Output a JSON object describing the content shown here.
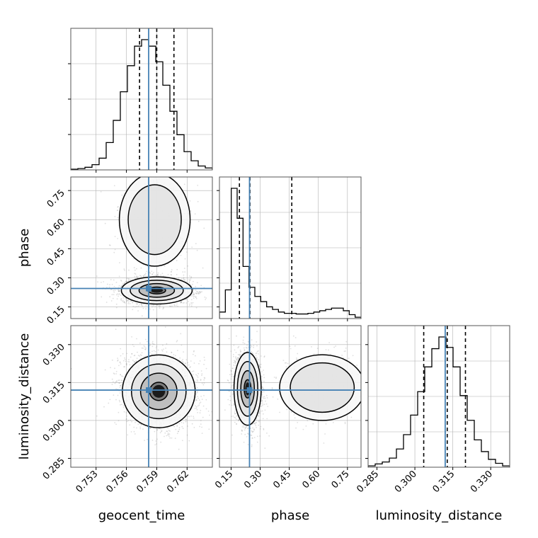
{
  "chart_data": {
    "type": "corner",
    "parameters": [
      "geocent_time",
      "phase",
      "luminosity_distance"
    ],
    "labels": {
      "geocent_time": "geocent_time",
      "phase": "phase",
      "luminosity_distance": "luminosity_distance"
    },
    "ranges": {
      "geocent_time": [
        0.7505,
        0.7645
      ],
      "phase": [
        0.09,
        0.82
      ],
      "luminosity_distance": [
        0.2815,
        0.3375
      ]
    },
    "ticks": {
      "geocent_time": [
        "0.753",
        "0.756",
        "0.759",
        "0.762"
      ],
      "phase": [
        "0.15",
        "0.30",
        "0.45",
        "0.60",
        "0.75"
      ],
      "luminosity_distance": [
        "0.285",
        "0.300",
        "0.315",
        "0.330"
      ]
    },
    "injection": {
      "geocent_time": 0.7582,
      "phase": 0.245,
      "luminosity_distance": 0.312
    },
    "quantiles": {
      "geocent_time": [
        0.7573,
        0.759,
        0.7607
      ],
      "phase": [
        0.193,
        0.247,
        0.463
      ],
      "luminosity_distance": [
        0.3035,
        0.3128,
        0.32
      ]
    },
    "histograms": {
      "geocent_time": [
        0.005,
        0.01,
        0.02,
        0.04,
        0.09,
        0.21,
        0.38,
        0.6,
        0.8,
        0.95,
        1.0,
        0.95,
        0.83,
        0.65,
        0.45,
        0.27,
        0.14,
        0.07,
        0.03,
        0.015
      ],
      "phase": [
        0.05,
        0.22,
        1.0,
        0.77,
        0.4,
        0.24,
        0.17,
        0.13,
        0.09,
        0.07,
        0.05,
        0.04,
        0.04,
        0.035,
        0.035,
        0.04,
        0.05,
        0.06,
        0.07,
        0.08,
        0.08,
        0.06,
        0.03,
        0.01
      ],
      "luminosity_distance": [
        0.01,
        0.025,
        0.04,
        0.07,
        0.14,
        0.25,
        0.4,
        0.58,
        0.77,
        0.91,
        1.0,
        0.92,
        0.77,
        0.55,
        0.36,
        0.21,
        0.12,
        0.06,
        0.03,
        0.01
      ]
    },
    "density_2d": {
      "phase_vs_geocent_time": {
        "components": [
          {
            "weight": 0.8,
            "mean": [
              0.759,
              0.235
            ],
            "sd": [
              0.00175,
              0.035
            ],
            "rho": 0.0
          },
          {
            "weight": 0.2,
            "mean": [
              0.7588,
              0.6
            ],
            "sd": [
              0.00175,
              0.12
            ],
            "rho": 0.0
          }
        ]
      },
      "luminosity_distance_vs_geocent_time": {
        "components": [
          {
            "weight": 1.0,
            "mean": [
              0.7592,
              0.3115
            ],
            "sd": [
              0.0018,
              0.0072
            ],
            "rho": -0.1
          }
        ]
      },
      "luminosity_distance_vs_phase": {
        "components": [
          {
            "weight": 0.78,
            "mean": [
              0.235,
              0.3125
            ],
            "sd": [
              0.035,
              0.0072
            ],
            "rho": -0.1
          },
          {
            "weight": 0.22,
            "mean": [
              0.62,
              0.313
            ],
            "sd": [
              0.11,
              0.0065
            ],
            "rho": 0.0
          }
        ]
      }
    },
    "contour_levels_sigma": [
      0.5,
      1.0,
      1.5,
      2.0
    ],
    "grid": true,
    "colors": {
      "histogram": "#000000",
      "quantile_line": "#000000",
      "truth": "#4682b4",
      "contour": "#000000",
      "samples": "#7f7f7f",
      "grid": "#b0b0b0",
      "axes": "#555555"
    }
  }
}
